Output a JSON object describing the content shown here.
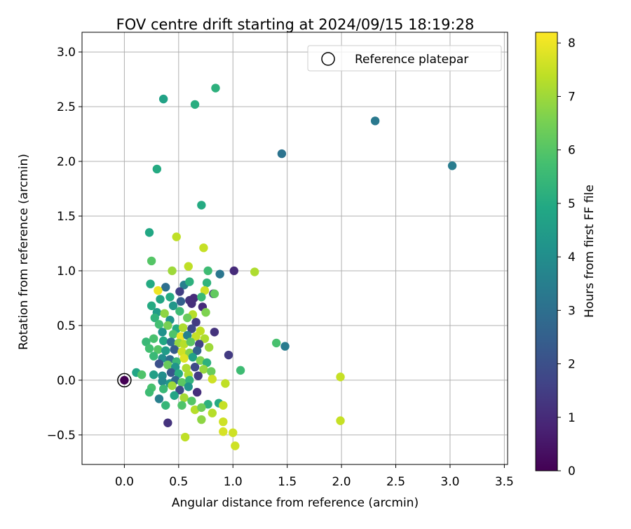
{
  "chart_data": {
    "type": "scatter",
    "title": "FOV centre drift starting at 2024/09/15 18:19:28",
    "xlabel": "Angular distance from reference (arcmin)",
    "ylabel": "Rotation from reference (arcmin)",
    "xlim": [
      -0.39,
      3.53
    ],
    "ylim": [
      -0.77,
      3.18
    ],
    "x_ticks": [
      0.0,
      0.5,
      1.0,
      1.5,
      2.0,
      2.5,
      3.0,
      3.5
    ],
    "x_tick_labels": [
      "0.0",
      "0.5",
      "1.0",
      "1.5",
      "2.0",
      "2.5",
      "3.0",
      "3.5"
    ],
    "y_ticks": [
      -0.5,
      0.0,
      0.5,
      1.0,
      1.5,
      2.0,
      2.5,
      3.0
    ],
    "y_tick_labels": [
      "−0.5",
      "0.0",
      "0.5",
      "1.0",
      "1.5",
      "2.0",
      "2.5",
      "3.0"
    ],
    "grid": true,
    "legend": {
      "placement": "top-right",
      "entries": [
        "Reference platepar"
      ]
    },
    "colorbar": {
      "label": "Hours from first FF file",
      "colormap": "viridis",
      "range": [
        0,
        8.2
      ],
      "ticks": [
        0,
        1,
        2,
        3,
        4,
        5,
        6,
        7,
        8
      ],
      "tick_labels": [
        "0",
        "1",
        "2",
        "3",
        "4",
        "5",
        "6",
        "7",
        "8"
      ]
    },
    "reference_point": {
      "x": 0.0,
      "y": 0.0,
      "hours": 0.0
    },
    "points": [
      {
        "x": 0.84,
        "y": 2.67,
        "h": 5.2
      },
      {
        "x": 0.36,
        "y": 2.57,
        "h": 4.7
      },
      {
        "x": 0.65,
        "y": 2.52,
        "h": 5.1
      },
      {
        "x": 0.3,
        "y": 1.93,
        "h": 5.0
      },
      {
        "x": 0.71,
        "y": 1.6,
        "h": 5.0
      },
      {
        "x": 1.45,
        "y": 2.07,
        "h": 3.1
      },
      {
        "x": 2.31,
        "y": 2.37,
        "h": 3.3
      },
      {
        "x": 3.02,
        "y": 1.96,
        "h": 3.4
      },
      {
        "x": 0.23,
        "y": 1.35,
        "h": 4.9
      },
      {
        "x": 0.48,
        "y": 1.31,
        "h": 7.4
      },
      {
        "x": 0.73,
        "y": 1.21,
        "h": 7.5
      },
      {
        "x": 0.25,
        "y": 1.09,
        "h": 6.0
      },
      {
        "x": 0.59,
        "y": 1.04,
        "h": 7.4
      },
      {
        "x": 0.44,
        "y": 1.0,
        "h": 7.0
      },
      {
        "x": 0.77,
        "y": 1.0,
        "h": 5.6
      },
      {
        "x": 0.88,
        "y": 0.97,
        "h": 3.2
      },
      {
        "x": 1.01,
        "y": 1.0,
        "h": 1.0
      },
      {
        "x": 1.2,
        "y": 0.99,
        "h": 7.2
      },
      {
        "x": 0.24,
        "y": 0.88,
        "h": 5.0
      },
      {
        "x": 0.38,
        "y": 0.85,
        "h": 3.0
      },
      {
        "x": 0.55,
        "y": 0.87,
        "h": 3.5
      },
      {
        "x": 0.6,
        "y": 0.9,
        "h": 5.2
      },
      {
        "x": 0.76,
        "y": 0.89,
        "h": 5.3
      },
      {
        "x": 0.31,
        "y": 0.82,
        "h": 8.0
      },
      {
        "x": 0.51,
        "y": 0.81,
        "h": 1.5
      },
      {
        "x": 0.74,
        "y": 0.82,
        "h": 7.6
      },
      {
        "x": 0.82,
        "y": 0.79,
        "h": 1.2
      },
      {
        "x": 0.83,
        "y": 0.79,
        "h": 6.2
      },
      {
        "x": 0.42,
        "y": 0.76,
        "h": 5.0
      },
      {
        "x": 0.6,
        "y": 0.73,
        "h": 1.2
      },
      {
        "x": 0.33,
        "y": 0.74,
        "h": 4.8
      },
      {
        "x": 0.52,
        "y": 0.72,
        "h": 2.5
      },
      {
        "x": 0.64,
        "y": 0.75,
        "h": 1.0
      },
      {
        "x": 0.71,
        "y": 0.76,
        "h": 5.5
      },
      {
        "x": 0.25,
        "y": 0.68,
        "h": 5.0
      },
      {
        "x": 0.45,
        "y": 0.68,
        "h": 4.3
      },
      {
        "x": 0.62,
        "y": 0.7,
        "h": 1.1
      },
      {
        "x": 0.72,
        "y": 0.67,
        "h": 1.0
      },
      {
        "x": 0.3,
        "y": 0.62,
        "h": 4.5
      },
      {
        "x": 0.51,
        "y": 0.63,
        "h": 5.6
      },
      {
        "x": 0.37,
        "y": 0.61,
        "h": 6.8
      },
      {
        "x": 0.63,
        "y": 0.6,
        "h": 7.3
      },
      {
        "x": 0.75,
        "y": 0.62,
        "h": 6.6
      },
      {
        "x": 0.28,
        "y": 0.57,
        "h": 5.3
      },
      {
        "x": 0.42,
        "y": 0.55,
        "h": 4.2
      },
      {
        "x": 0.58,
        "y": 0.57,
        "h": 6.3
      },
      {
        "x": 0.66,
        "y": 0.53,
        "h": 1.4
      },
      {
        "x": 0.32,
        "y": 0.51,
        "h": 5.7
      },
      {
        "x": 0.4,
        "y": 0.5,
        "h": 6.5
      },
      {
        "x": 0.48,
        "y": 0.47,
        "h": 5.0
      },
      {
        "x": 0.54,
        "y": 0.48,
        "h": 7.2
      },
      {
        "x": 0.62,
        "y": 0.47,
        "h": 1.8
      },
      {
        "x": 0.7,
        "y": 0.45,
        "h": 7.4
      },
      {
        "x": 0.83,
        "y": 0.44,
        "h": 1.2
      },
      {
        "x": 0.35,
        "y": 0.44,
        "h": 4.1
      },
      {
        "x": 0.45,
        "y": 0.42,
        "h": 5.9
      },
      {
        "x": 0.52,
        "y": 0.4,
        "h": 8.0
      },
      {
        "x": 0.58,
        "y": 0.41,
        "h": 3.6
      },
      {
        "x": 0.66,
        "y": 0.4,
        "h": 7.5
      },
      {
        "x": 0.74,
        "y": 0.38,
        "h": 7.2
      },
      {
        "x": 0.2,
        "y": 0.35,
        "h": 5.5
      },
      {
        "x": 0.27,
        "y": 0.38,
        "h": 5.8
      },
      {
        "x": 0.36,
        "y": 0.36,
        "h": 4.9
      },
      {
        "x": 0.43,
        "y": 0.35,
        "h": 2.9
      },
      {
        "x": 0.5,
        "y": 0.34,
        "h": 6.9
      },
      {
        "x": 0.55,
        "y": 0.33,
        "h": 7.3
      },
      {
        "x": 0.61,
        "y": 0.35,
        "h": 6.1
      },
      {
        "x": 0.69,
        "y": 0.33,
        "h": 1.6
      },
      {
        "x": 0.78,
        "y": 0.3,
        "h": 7.0
      },
      {
        "x": 1.4,
        "y": 0.34,
        "h": 5.8
      },
      {
        "x": 1.48,
        "y": 0.31,
        "h": 3.4
      },
      {
        "x": 0.23,
        "y": 0.29,
        "h": 5.7
      },
      {
        "x": 0.31,
        "y": 0.28,
        "h": 6.0
      },
      {
        "x": 0.38,
        "y": 0.27,
        "h": 4.5
      },
      {
        "x": 0.46,
        "y": 0.28,
        "h": 2.3
      },
      {
        "x": 0.53,
        "y": 0.26,
        "h": 7.6
      },
      {
        "x": 0.6,
        "y": 0.25,
        "h": 6.7
      },
      {
        "x": 0.67,
        "y": 0.27,
        "h": 2.6
      },
      {
        "x": 0.96,
        "y": 0.23,
        "h": 1.4
      },
      {
        "x": 0.27,
        "y": 0.22,
        "h": 5.5
      },
      {
        "x": 0.35,
        "y": 0.2,
        "h": 4.0
      },
      {
        "x": 0.42,
        "y": 0.19,
        "h": 3.0
      },
      {
        "x": 0.48,
        "y": 0.17,
        "h": 5.5
      },
      {
        "x": 0.55,
        "y": 0.2,
        "h": 7.8
      },
      {
        "x": 0.63,
        "y": 0.21,
        "h": 4.6
      },
      {
        "x": 0.7,
        "y": 0.18,
        "h": 6.6
      },
      {
        "x": 0.76,
        "y": 0.16,
        "h": 5.2
      },
      {
        "x": 0.32,
        "y": 0.15,
        "h": 2.0
      },
      {
        "x": 0.4,
        "y": 0.14,
        "h": 6.3
      },
      {
        "x": 0.47,
        "y": 0.12,
        "h": 4.2
      },
      {
        "x": 0.57,
        "y": 0.11,
        "h": 7.2
      },
      {
        "x": 0.65,
        "y": 0.12,
        "h": 1.8
      },
      {
        "x": 0.73,
        "y": 0.1,
        "h": 6.9
      },
      {
        "x": 1.07,
        "y": 0.09,
        "h": 5.6
      },
      {
        "x": 0.11,
        "y": 0.07,
        "h": 4.8
      },
      {
        "x": 0.16,
        "y": 0.05,
        "h": 5.9
      },
      {
        "x": 0.27,
        "y": 0.05,
        "h": 4.6
      },
      {
        "x": 0.35,
        "y": 0.04,
        "h": 4.0
      },
      {
        "x": 0.43,
        "y": 0.07,
        "h": 2.2
      },
      {
        "x": 0.5,
        "y": 0.06,
        "h": 5.1
      },
      {
        "x": 0.59,
        "y": 0.05,
        "h": 7.2
      },
      {
        "x": 0.68,
        "y": 0.04,
        "h": 1.4
      },
      {
        "x": 0.8,
        "y": 0.08,
        "h": 6.3
      },
      {
        "x": 0.35,
        "y": -0.01,
        "h": 3.8
      },
      {
        "x": 0.42,
        "y": -0.03,
        "h": 4.3
      },
      {
        "x": 0.47,
        "y": 0.0,
        "h": 2.8
      },
      {
        "x": 0.53,
        "y": -0.02,
        "h": 6.1
      },
      {
        "x": 0.6,
        "y": 0.0,
        "h": 5.3
      },
      {
        "x": 0.81,
        "y": 0.01,
        "h": 7.6
      },
      {
        "x": 0.93,
        "y": -0.03,
        "h": 7.4
      },
      {
        "x": 1.99,
        "y": 0.03,
        "h": 7.5
      },
      {
        "x": 0.25,
        "y": -0.07,
        "h": 5.8
      },
      {
        "x": 0.36,
        "y": -0.08,
        "h": 5.5
      },
      {
        "x": 0.44,
        "y": -0.05,
        "h": 7.0
      },
      {
        "x": 0.51,
        "y": -0.09,
        "h": 1.8
      },
      {
        "x": 0.59,
        "y": -0.06,
        "h": 4.2
      },
      {
        "x": 0.67,
        "y": -0.11,
        "h": 1.1
      },
      {
        "x": 0.23,
        "y": -0.11,
        "h": 5.6
      },
      {
        "x": 0.32,
        "y": -0.17,
        "h": 3.5
      },
      {
        "x": 0.46,
        "y": -0.14,
        "h": 4.8
      },
      {
        "x": 0.55,
        "y": -0.16,
        "h": 7.1
      },
      {
        "x": 0.62,
        "y": -0.19,
        "h": 6.0
      },
      {
        "x": 0.38,
        "y": -0.23,
        "h": 5.4
      },
      {
        "x": 0.53,
        "y": -0.23,
        "h": 5.9
      },
      {
        "x": 0.65,
        "y": -0.27,
        "h": 7.3
      },
      {
        "x": 0.77,
        "y": -0.22,
        "h": 5.2
      },
      {
        "x": 0.87,
        "y": -0.21,
        "h": 5.0
      },
      {
        "x": 0.71,
        "y": -0.25,
        "h": 6.4
      },
      {
        "x": 0.91,
        "y": -0.23,
        "h": 7.5
      },
      {
        "x": 0.81,
        "y": -0.3,
        "h": 7.3
      },
      {
        "x": 0.71,
        "y": -0.36,
        "h": 6.8
      },
      {
        "x": 0.91,
        "y": -0.38,
        "h": 7.6
      },
      {
        "x": 1.99,
        "y": -0.37,
        "h": 7.5
      },
      {
        "x": 0.4,
        "y": -0.39,
        "h": 1.2
      },
      {
        "x": 0.91,
        "y": -0.47,
        "h": 7.7
      },
      {
        "x": 1.0,
        "y": -0.48,
        "h": 7.6
      },
      {
        "x": 0.56,
        "y": -0.52,
        "h": 7.4
      },
      {
        "x": 1.02,
        "y": -0.6,
        "h": 7.6
      }
    ]
  }
}
